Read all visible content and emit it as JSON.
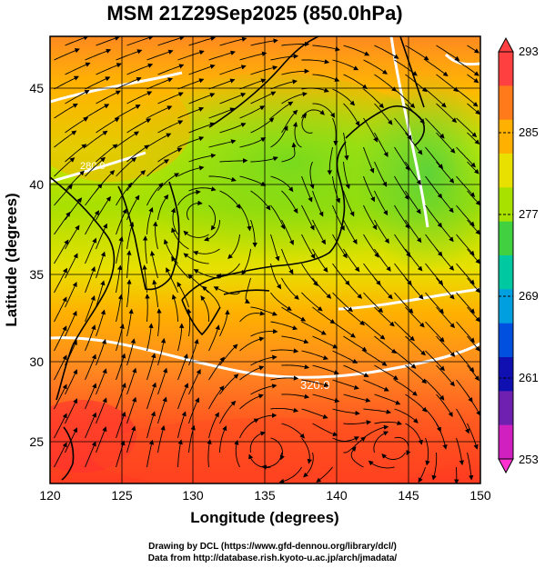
{
  "title": "MSM 21Z29Sep2025 (850.0hPa)",
  "xlabel": "Longitude (degrees)",
  "ylabel": "Latitude  (degrees)",
  "x_ticks": [
    "120",
    "125",
    "130",
    "135",
    "140",
    "145",
    "150"
  ],
  "y_ticks": [
    "25",
    "30",
    "35",
    "40",
    "45"
  ],
  "colorbar": {
    "labels": [
      "293",
      "285",
      "277",
      "269",
      "261",
      "253"
    ],
    "colors": [
      "#ff4040",
      "#ff7a1a",
      "#ffb000",
      "#e8e000",
      "#a8e000",
      "#40d040",
      "#00c8a0",
      "#00a0e0",
      "#0050e0",
      "#1010b0",
      "#7020b0",
      "#d020c0"
    ]
  },
  "contour_labels": [
    "280.0",
    "320.0"
  ],
  "credits": [
    "Drawing by DCL (https://www.gfd-dennou.org/library/dcl/)",
    "Data from http://database.rish.kyoto-u.ac.jp/arch/jmadata/"
  ],
  "chart_data": {
    "type": "map",
    "title": "MSM 21Z29Sep2025 (850.0hPa)",
    "xlabel": "Longitude (degrees)",
    "ylabel": "Latitude  (degrees)",
    "xlim": [
      120,
      150
    ],
    "ylim": [
      22.4,
      47.6
    ],
    "colorbar_range": [
      253,
      293
    ],
    "colorbar_ticks": [
      253,
      261,
      269,
      277,
      285,
      293
    ],
    "contour_levels": [
      280.0,
      320.0
    ],
    "grid": true
  }
}
